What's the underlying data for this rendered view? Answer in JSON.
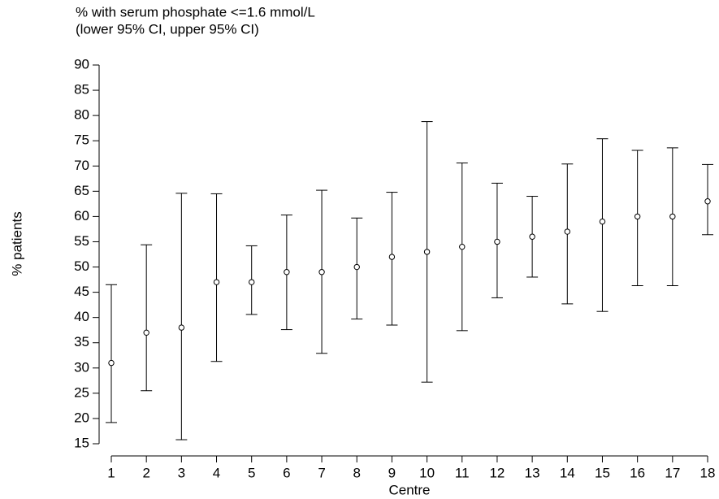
{
  "chart_data": {
    "type": "errorbar",
    "title": "% with serum phosphate <=1.6 mmol/L",
    "subtitle": "(lower 95% CI, upper 95% CI)",
    "x_label": "Centre",
    "y_label": "% patients",
    "categories": [
      "1",
      "2",
      "3",
      "4",
      "5",
      "6",
      "7",
      "8",
      "9",
      "10",
      "11",
      "12",
      "13",
      "14",
      "15",
      "16",
      "17",
      "18"
    ],
    "series": [
      {
        "name": "% with serum phosphate <=1.6 mmol/L",
        "color": "#000000",
        "values": [
          31,
          37,
          38,
          47,
          47,
          49,
          49,
          50,
          52,
          53,
          54,
          55,
          56,
          57,
          59,
          60,
          60,
          63
        ],
        "lower": [
          19.2,
          25.5,
          15.8,
          31.3,
          40.6,
          37.6,
          32.9,
          39.7,
          38.5,
          27.2,
          37.4,
          43.9,
          48,
          42.7,
          41.2,
          46.3,
          46.3,
          56.4
        ],
        "upper": [
          46.5,
          54.4,
          64.6,
          64.5,
          54.2,
          60.3,
          65.2,
          59.7,
          64.8,
          78.8,
          70.6,
          66.6,
          64,
          70.4,
          75.4,
          73.1,
          73.6,
          70.3
        ]
      }
    ],
    "ylim": [
      15,
      90
    ],
    "yticks": [
      15,
      20,
      25,
      30,
      35,
      40,
      45,
      50,
      55,
      60,
      65,
      70,
      75,
      80,
      85,
      90
    ]
  }
}
